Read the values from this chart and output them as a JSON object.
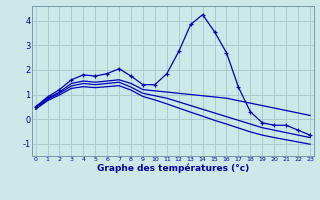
{
  "xlabel": "Graphe des températures (°c)",
  "background_color": "#cce8e8",
  "grid_color": "#aacccc",
  "line_color": "#0000bb",
  "x_ticks": [
    0,
    1,
    2,
    3,
    4,
    5,
    6,
    7,
    8,
    9,
    10,
    11,
    12,
    13,
    14,
    15,
    16,
    17,
    18,
    19,
    20,
    21,
    22,
    23
  ],
  "ylim": [
    -1.5,
    4.6
  ],
  "xlim": [
    -0.3,
    23.3
  ],
  "y_ticks": [
    -1,
    0,
    1,
    2,
    3,
    4
  ],
  "series1_x": [
    0,
    1,
    2,
    3,
    4,
    5,
    6,
    7,
    8,
    9,
    10,
    11,
    12,
    13,
    14,
    15,
    16,
    17,
    18,
    19,
    20,
    21,
    22,
    23
  ],
  "series1_y": [
    0.5,
    0.9,
    1.2,
    1.6,
    1.8,
    1.75,
    1.85,
    2.05,
    1.75,
    1.4,
    1.4,
    1.85,
    2.75,
    3.85,
    4.25,
    3.55,
    2.7,
    1.3,
    0.3,
    -0.15,
    -0.25,
    -0.25,
    -0.45,
    -0.65
  ],
  "series2_x": [
    0,
    1,
    2,
    3,
    4,
    5,
    6,
    7,
    8,
    9,
    10,
    11,
    12,
    13,
    14,
    15,
    16,
    17,
    18,
    19,
    20,
    21,
    22,
    23
  ],
  "series2_y": [
    0.5,
    0.85,
    1.1,
    1.45,
    1.55,
    1.5,
    1.55,
    1.6,
    1.45,
    1.2,
    1.15,
    1.1,
    1.05,
    1.0,
    0.95,
    0.9,
    0.85,
    0.75,
    0.65,
    0.55,
    0.45,
    0.35,
    0.25,
    0.15
  ],
  "series3_x": [
    0,
    1,
    2,
    3,
    4,
    5,
    6,
    7,
    8,
    9,
    10,
    11,
    12,
    13,
    14,
    15,
    16,
    17,
    18,
    19,
    20,
    21,
    22,
    23
  ],
  "series3_y": [
    0.45,
    0.8,
    1.05,
    1.35,
    1.45,
    1.4,
    1.45,
    1.5,
    1.3,
    1.05,
    0.95,
    0.85,
    0.7,
    0.55,
    0.4,
    0.25,
    0.1,
    -0.05,
    -0.2,
    -0.35,
    -0.45,
    -0.55,
    -0.65,
    -0.75
  ],
  "series4_x": [
    0,
    1,
    2,
    3,
    4,
    5,
    6,
    7,
    8,
    9,
    10,
    11,
    12,
    13,
    14,
    15,
    16,
    17,
    18,
    19,
    20,
    21,
    22,
    23
  ],
  "series4_y": [
    0.4,
    0.75,
    0.98,
    1.25,
    1.32,
    1.28,
    1.32,
    1.36,
    1.18,
    0.92,
    0.78,
    0.62,
    0.45,
    0.28,
    0.12,
    -0.05,
    -0.2,
    -0.36,
    -0.52,
    -0.65,
    -0.75,
    -0.84,
    -0.93,
    -1.02
  ]
}
